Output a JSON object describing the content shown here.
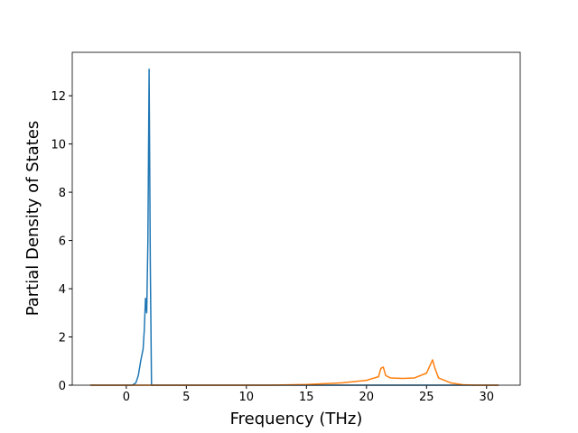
{
  "chart_data": {
    "type": "line",
    "xlabel": "Frequency (THz)",
    "ylabel": "Partial Density of States",
    "series": [
      {
        "color": "#1f77b4",
        "x": [
          -3,
          0,
          0.5,
          0.8,
          1.0,
          1.2,
          1.4,
          1.5,
          1.6,
          1.7,
          1.8,
          1.9,
          2.0,
          2.1,
          31
        ],
        "values": [
          0,
          0,
          0,
          0.1,
          0.4,
          1.0,
          1.5,
          2.3,
          3.6,
          3.0,
          6,
          13.1,
          5,
          0,
          0
        ]
      },
      {
        "color": "#ff7f0e",
        "x": [
          -3,
          12,
          15,
          18,
          20,
          21,
          21.2,
          21.4,
          21.6,
          22,
          23,
          24,
          25,
          25.5,
          25.7,
          26,
          27,
          28,
          29,
          31
        ],
        "values": [
          0,
          0,
          0.03,
          0.1,
          0.2,
          0.35,
          0.7,
          0.75,
          0.4,
          0.3,
          0.28,
          0.3,
          0.5,
          1.05,
          0.7,
          0.3,
          0.1,
          0.02,
          0,
          0
        ]
      }
    ],
    "xlim": [
      -4.5,
      32.8
    ],
    "xticks": [
      0,
      5,
      10,
      15,
      20,
      25,
      30
    ],
    "ylim": [
      0,
      13.8
    ],
    "yticks": [
      0,
      2,
      4,
      6,
      8,
      10,
      12
    ]
  }
}
